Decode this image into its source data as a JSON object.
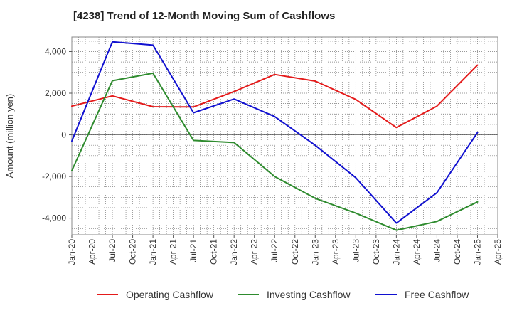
{
  "chart_data": {
    "type": "line",
    "title": "[4238]  Trend of 12-Month Moving Sum of Cashflows",
    "xlabel": "",
    "ylabel": "Amount (million yen)",
    "x": [
      "Jan-20",
      "Jul-20",
      "Jan-21",
      "Jul-21",
      "Jan-22",
      "Jul-22",
      "Jan-23",
      "Jul-23",
      "Jan-24",
      "Jul-24",
      "Jan-25"
    ],
    "x_ticks": [
      "Jan-20",
      "Apr-20",
      "Jul-20",
      "Oct-20",
      "Jan-21",
      "Apr-21",
      "Jul-21",
      "Oct-21",
      "Jan-22",
      "Apr-22",
      "Jul-22",
      "Oct-22",
      "Jan-23",
      "Apr-23",
      "Jul-23",
      "Oct-23",
      "Jan-24",
      "Apr-24",
      "Jul-24",
      "Oct-24",
      "Jan-25",
      "Apr-25"
    ],
    "y_ticks": [
      -4000,
      -2000,
      0,
      2000,
      4000
    ],
    "y_tick_labels": [
      "-4,000",
      "-2,000",
      "0",
      "2,000",
      "4,000"
    ],
    "ylim": [
      -4800,
      4700
    ],
    "grid": true,
    "legend_position": "bottom",
    "series": [
      {
        "name": "Operating Cashflow",
        "color": "#e41a1a",
        "values": [
          1380,
          1870,
          1350,
          1340,
          2080,
          2900,
          2580,
          1700,
          350,
          1380,
          3350
        ]
      },
      {
        "name": "Investing Cashflow",
        "color": "#2e8b2e",
        "values": [
          -1720,
          2600,
          2960,
          -270,
          -370,
          -2000,
          -3050,
          -3760,
          -4580,
          -4160,
          -3220
        ]
      },
      {
        "name": "Free Cashflow",
        "color": "#1010d0",
        "values": [
          -300,
          4470,
          4310,
          1060,
          1720,
          880,
          -500,
          -2060,
          -4240,
          -2780,
          110
        ]
      }
    ]
  }
}
